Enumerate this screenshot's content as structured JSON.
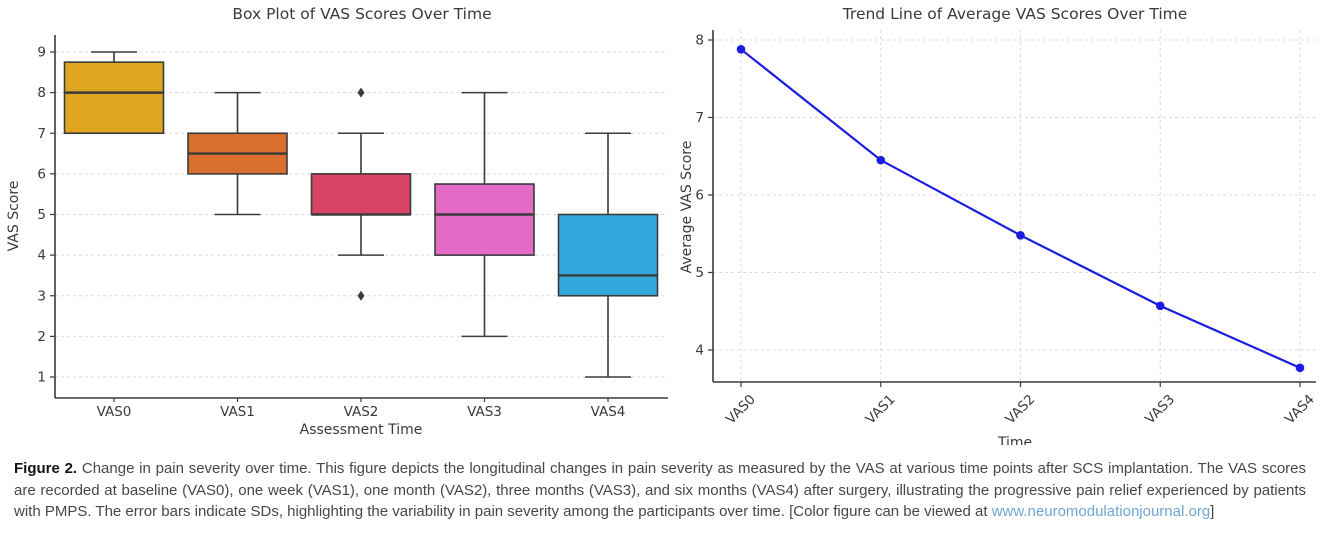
{
  "figure": {
    "caption": {
      "label": "Figure 2.",
      "body": " Change in pain severity over time. This figure depicts the longitudinal changes in pain severity as measured by the VAS at various time points after SCS implantation. The VAS scores are recorded at baseline (VAS0), one week (VAS1), one month (VAS2), three months (VAS3), and six months (VAS4) after surgery, illustrating the progressive pain relief experienced by patients with PMPS. The error bars indicate SDs, highlighting the variability in pain severity among the participants over time. [Color figure can be viewed at ",
      "link_text": "www.neuromodulationjournal.org",
      "suffix": "]",
      "link_color": "#6FA6D3",
      "text_color": "#474747"
    }
  },
  "chart_data": [
    {
      "type": "box",
      "title": "Box Plot of VAS Scores Over Time",
      "xlabel": "Assessment Time",
      "ylabel": "VAS Score",
      "categories": [
        "VAS0",
        "VAS1",
        "VAS2",
        "VAS3",
        "VAS4"
      ],
      "yticks": [
        1,
        2,
        3,
        4,
        5,
        6,
        7,
        8,
        9
      ],
      "ylim": [
        1,
        9
      ],
      "grid": "horizontal-dashed",
      "edge_color": "#3B3B3B",
      "grid_color": "#DBDBDB",
      "text_color": "#3A3A3A",
      "boxes": [
        {
          "category": "VAS0",
          "whisker_low": 7,
          "q1": 7,
          "median": 8,
          "q3": 8.75,
          "whisker_high": 9,
          "outliers": [],
          "color": "#DFA520"
        },
        {
          "category": "VAS1",
          "whisker_low": 5,
          "q1": 6,
          "median": 6.5,
          "q3": 7,
          "whisker_high": 8,
          "outliers": [],
          "color": "#D9702E"
        },
        {
          "category": "VAS2",
          "whisker_low": 4,
          "q1": 5,
          "median": 5,
          "q3": 6,
          "whisker_high": 7,
          "outliers": [
            8,
            3
          ],
          "color": "#D84463"
        },
        {
          "category": "VAS3",
          "whisker_low": 2,
          "q1": 4,
          "median": 5,
          "q3": 5.75,
          "whisker_high": 8,
          "outliers": [],
          "color": "#E36BC6"
        },
        {
          "category": "VAS4",
          "whisker_low": 1,
          "q1": 3,
          "median": 3.5,
          "q3": 5,
          "whisker_high": 7,
          "outliers": [],
          "color": "#33A8DC"
        }
      ]
    },
    {
      "type": "line",
      "title": "Trend Line of Average VAS Scores Over Time",
      "xlabel": "Time",
      "ylabel": "Average VAS Score",
      "x": [
        "VAS0",
        "VAS1",
        "VAS2",
        "VAS3",
        "VAS4"
      ],
      "values": [
        7.88,
        6.45,
        5.48,
        4.57,
        3.77
      ],
      "yticks": [
        4,
        5,
        6,
        7,
        8
      ],
      "ylim": [
        3.6,
        8.1
      ],
      "grid": "both-dashed",
      "line_color": "#1B1BE3",
      "marker": "circle",
      "grid_color": "#DBDBDB",
      "text_color": "#3A3A3A"
    }
  ]
}
